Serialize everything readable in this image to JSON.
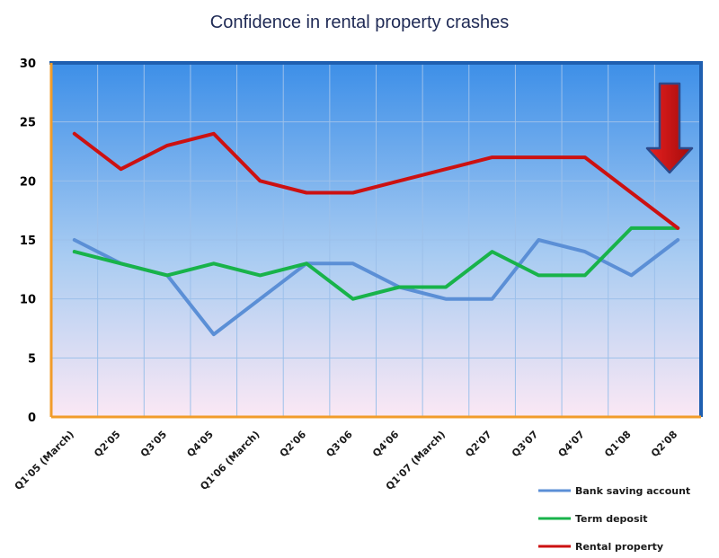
{
  "chart_data": {
    "type": "line",
    "title": "Confidence in rental property crashes",
    "xlabel": "",
    "ylabel": "",
    "ylim": [
      0,
      30
    ],
    "yticks": [
      0,
      5,
      10,
      15,
      20,
      25,
      30
    ],
    "grid": true,
    "legend_position": "bottom-right",
    "categories": [
      "Q1'05 (March)",
      "Q2'05",
      "Q3'05",
      "Q4'05",
      "Q1'06 (March)",
      "Q2'06",
      "Q3'06",
      "Q4'06",
      "Q1'07 (March)",
      "Q2'07",
      "Q3'07",
      "Q4'07",
      "Q1'08",
      "Q2'08"
    ],
    "series": [
      {
        "name": "Bank saving account",
        "color": "#5b8fd6",
        "values": [
          15,
          13,
          12,
          7,
          10,
          13,
          13,
          11,
          10,
          10,
          15,
          14,
          12,
          15
        ]
      },
      {
        "name": "Term deposit",
        "color": "#18b34a",
        "values": [
          14,
          13,
          12,
          13,
          12,
          13,
          10,
          11,
          11,
          14,
          12,
          12,
          16,
          16
        ]
      },
      {
        "name": "Rental property",
        "color": "#cc1111",
        "values": [
          24,
          21,
          23,
          24,
          20,
          19,
          19,
          20,
          21,
          22,
          22,
          22,
          19,
          16
        ]
      }
    ],
    "annotation_icon": "down-arrow-icon"
  }
}
